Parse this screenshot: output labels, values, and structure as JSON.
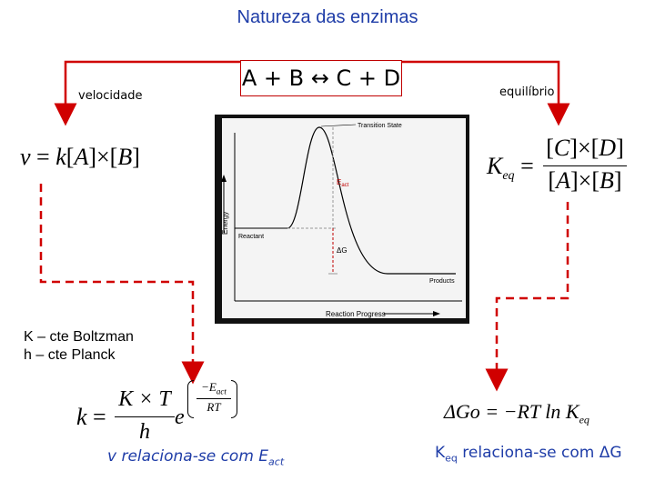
{
  "title": "Natureza das enzimas",
  "reaction": "A + B ↔ C + D",
  "left_label": "velocidade",
  "right_label": "equilíbrio",
  "rate_law": {
    "lhs": "v",
    "eq": "=",
    "k": "k",
    "A": "A",
    "times": "×",
    "B": "B"
  },
  "keq_law": {
    "K": "K",
    "sub": "eq",
    "eq": "=",
    "C": "C",
    "D": "D",
    "A": "A",
    "B": "B",
    "times": "×"
  },
  "constants": [
    "K – cte Boltzman",
    "h – cte Planck"
  ],
  "eyring": {
    "k": "k",
    "eq": "=",
    "num": "K × T",
    "den": "h",
    "e": "e",
    "exp_num": "−E",
    "exp_sub": "act",
    "exp_den": "RT"
  },
  "gibbs": {
    "text1": "ΔGo = −RT ln ",
    "K": "K",
    "sub": "eq"
  },
  "conclusion_left": {
    "text": "v relaciona-se com E",
    "sub": "act"
  },
  "conclusion_right": {
    "K": "K",
    "sub": "eq",
    "text": " relaciona-se com ΔG"
  },
  "energy_diagram": {
    "transition_label": "Transition State",
    "eact_label": "E",
    "eact_sub": "act",
    "reactant_label": "Reactant",
    "dg_label": "ΔG",
    "products_label": "Products",
    "xlabel": "Reaction Progress",
    "ylabel": "Energy"
  },
  "colors": {
    "title": "#1f3da8",
    "arrows": "#d00000",
    "conclusion": "#1f3da8"
  }
}
